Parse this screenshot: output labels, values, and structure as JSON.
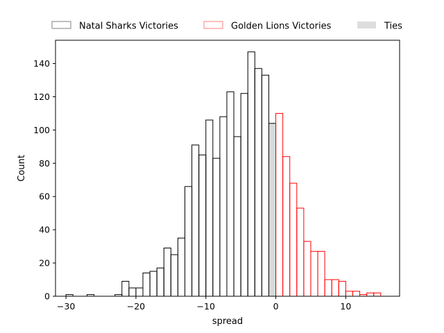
{
  "chart_data": {
    "type": "bar",
    "title": "",
    "xlabel": "spread",
    "ylabel": "Count",
    "xlim": [
      -31.5,
      17.7
    ],
    "ylim": [
      0,
      154
    ],
    "grid": false,
    "legend_position": "top",
    "x_ticks": [
      {
        "value": -30,
        "label": "−30"
      },
      {
        "value": -20,
        "label": "−20"
      },
      {
        "value": -10,
        "label": "−10"
      },
      {
        "value": 0,
        "label": "0"
      },
      {
        "value": 10,
        "label": "10"
      }
    ],
    "y_ticks": [
      {
        "value": 0,
        "label": "0"
      },
      {
        "value": 20,
        "label": "20"
      },
      {
        "value": 40,
        "label": "40"
      },
      {
        "value": 60,
        "label": "60"
      },
      {
        "value": 80,
        "label": "80"
      },
      {
        "value": 100,
        "label": "100"
      },
      {
        "value": 120,
        "label": "120"
      },
      {
        "value": 140,
        "label": "140"
      }
    ],
    "bin_width": 1,
    "series": [
      {
        "name": "Natal Sharks Victories",
        "edge_color": "#000000",
        "fill_color": "none",
        "legend_edge_color": "#7f7f7f",
        "bins": [
          [
            -30,
            1
          ],
          [
            -27,
            1
          ],
          [
            -23,
            1
          ],
          [
            -22,
            9
          ],
          [
            -21,
            5
          ],
          [
            -20,
            5
          ],
          [
            -19,
            14
          ],
          [
            -18,
            15
          ],
          [
            -17,
            17
          ],
          [
            -16,
            29
          ],
          [
            -15,
            25
          ],
          [
            -14,
            35
          ],
          [
            -13,
            66
          ],
          [
            -12,
            91
          ],
          [
            -11,
            85
          ],
          [
            -10,
            106
          ],
          [
            -9,
            83
          ],
          [
            -8,
            108
          ],
          [
            -7,
            123
          ],
          [
            -6,
            96
          ],
          [
            -5,
            122
          ],
          [
            -4,
            147
          ],
          [
            -3,
            137
          ],
          [
            -2,
            133
          ]
        ]
      },
      {
        "name": "Ties",
        "edge_color": "#000000",
        "fill_color": "#d9d9d9",
        "bins": [
          [
            -1,
            104
          ]
        ]
      },
      {
        "name": "Golden Lions Victories",
        "edge_color": "#ff0000",
        "fill_color": "none",
        "legend_edge_color": "#ff7f7f",
        "bins": [
          [
            0,
            110
          ],
          [
            1,
            84
          ],
          [
            2,
            68
          ],
          [
            3,
            53
          ],
          [
            4,
            33
          ],
          [
            5,
            27
          ],
          [
            6,
            27
          ],
          [
            7,
            10
          ],
          [
            8,
            10
          ],
          [
            9,
            9
          ],
          [
            10,
            3
          ],
          [
            11,
            3
          ],
          [
            12,
            1
          ],
          [
            13,
            2
          ],
          [
            14,
            2
          ]
        ]
      }
    ],
    "legend": [
      {
        "name": "Natal Sharks Victories",
        "style": "outline",
        "color": "#7f7f7f"
      },
      {
        "name": "Golden Lions Victories",
        "style": "outline",
        "color": "#ff7f7f"
      },
      {
        "name": "Ties",
        "style": "filled",
        "color": "#dddddd"
      }
    ]
  }
}
